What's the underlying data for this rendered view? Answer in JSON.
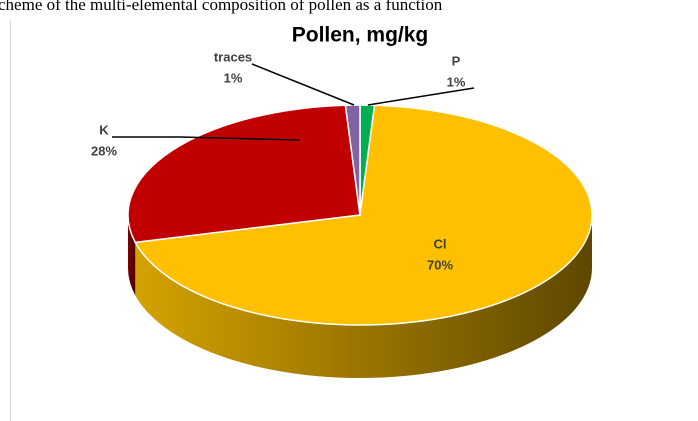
{
  "caption": "cheme of the multi-elemental composition of pollen as a function",
  "chart_data": {
    "type": "pie3d",
    "title": "Pollen, mg/kg",
    "categories": [
      "P",
      "Cl",
      "K",
      "traces"
    ],
    "values": [
      1,
      70,
      28,
      1
    ],
    "value_labels": [
      "1%",
      "70%",
      "28%",
      "1%"
    ],
    "colors": [
      "#00b050",
      "#ffc000",
      "#c00000",
      "#8064a2"
    ]
  }
}
